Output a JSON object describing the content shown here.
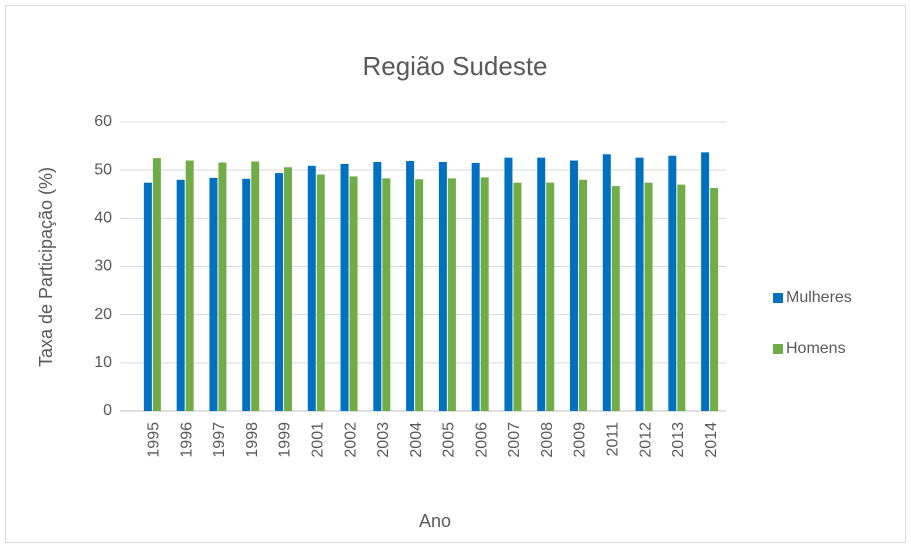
{
  "chart_data": {
    "type": "bar",
    "title": "Região Sudeste",
    "x_label": "Ano",
    "y_label": "Taxa de Participação (%)",
    "categories": [
      "1995",
      "1996",
      "1997",
      "1998",
      "1999",
      "2001",
      "2002",
      "2003",
      "2004",
      "2005",
      "2006",
      "2007",
      "2008",
      "2009",
      "2011",
      "2012",
      "2013",
      "2014"
    ],
    "series": [
      {
        "name": "Mulheres",
        "color": "#0070c0",
        "values": [
          47.4,
          48,
          48.4,
          48.2,
          49.4,
          50.9,
          51.3,
          51.7,
          51.9,
          51.7,
          51.5,
          52.6,
          52.6,
          52,
          53.3,
          52.6,
          53,
          53.7
        ]
      },
      {
        "name": "Homens",
        "color": "#70ad47",
        "values": [
          52.5,
          52,
          51.6,
          51.8,
          50.6,
          49.1,
          48.7,
          48.3,
          48.1,
          48.3,
          48.5,
          47.4,
          47.4,
          48,
          46.7,
          47.4,
          47,
          46.3
        ]
      }
    ],
    "ylim": [
      0,
      60
    ],
    "yticks": [
      0,
      10,
      20,
      30,
      40,
      50,
      60
    ],
    "grid": true,
    "legend": "right"
  }
}
